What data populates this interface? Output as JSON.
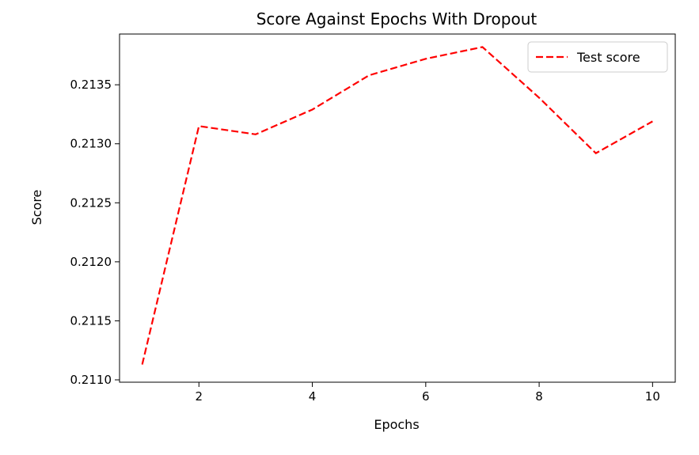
{
  "chart_data": {
    "type": "line",
    "title": "Score Against Epochs With Dropout",
    "xlabel": "Epochs",
    "ylabel": "Score",
    "xlim": [
      0.6,
      10.4
    ],
    "ylim": [
      0.21098,
      0.21393
    ],
    "xticks": [
      2,
      4,
      6,
      8,
      10
    ],
    "xtick_labels": [
      "2",
      "4",
      "6",
      "8",
      "10"
    ],
    "yticks": [
      0.211,
      0.2115,
      0.212,
      0.2125,
      0.213,
      0.2135
    ],
    "ytick_labels": [
      "0.2110",
      "0.2115",
      "0.2120",
      "0.2125",
      "0.2130",
      "0.2135"
    ],
    "grid": false,
    "legend_position": "top-right",
    "series": [
      {
        "name": "Test score",
        "color": "#ff0000",
        "line_style": "dashed",
        "x": [
          1,
          2,
          3,
          4,
          5,
          6,
          7,
          8,
          9,
          10
        ],
        "values": [
          0.21113,
          0.21315,
          0.21308,
          0.21329,
          0.21358,
          0.21372,
          0.21382,
          0.21339,
          0.21292,
          0.21319
        ]
      }
    ]
  }
}
